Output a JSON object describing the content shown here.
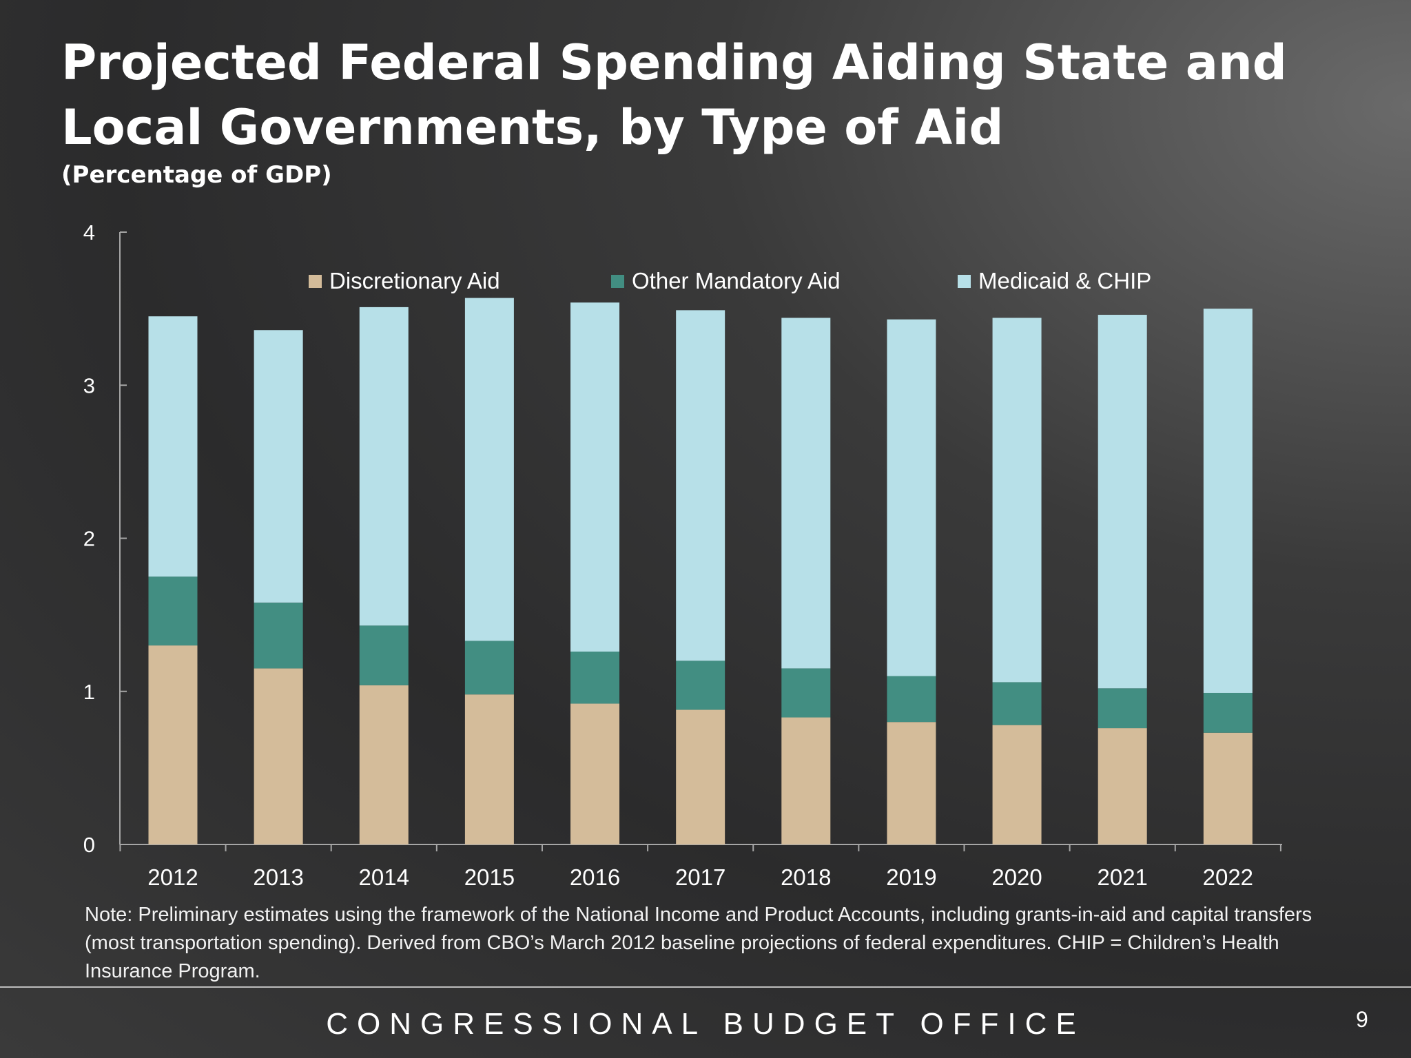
{
  "colors": {
    "discretionary": "#d4bc9a",
    "other_mandatory": "#428e82",
    "medicaid": "#b7e0e8"
  },
  "chart_data": {
    "type": "bar",
    "stacked": true,
    "title": "Projected Federal Spending Aiding State and Local Governments, by Type of Aid",
    "subtitle": "(Percentage of GDP)",
    "xlabel": "",
    "ylabel": "",
    "ylim": [
      0,
      4
    ],
    "yticks": [
      "0",
      "1",
      "2",
      "3",
      "4"
    ],
    "grid": false,
    "legend_placement": "top",
    "categories": [
      "2012",
      "2013",
      "2014",
      "2015",
      "2016",
      "2017",
      "2018",
      "2019",
      "2020",
      "2021",
      "2022"
    ],
    "series": [
      {
        "name": "Discretionary Aid",
        "color": "#d4bc9a",
        "values": [
          1.3,
          1.15,
          1.04,
          0.98,
          0.92,
          0.88,
          0.83,
          0.8,
          0.78,
          0.76,
          0.73
        ]
      },
      {
        "name": "Other Mandatory Aid",
        "color": "#428e82",
        "values": [
          0.45,
          0.43,
          0.39,
          0.35,
          0.34,
          0.32,
          0.32,
          0.3,
          0.28,
          0.26,
          0.26
        ]
      },
      {
        "name": "Medicaid & CHIP",
        "color": "#b7e0e8",
        "values": [
          1.7,
          1.78,
          2.08,
          2.24,
          2.28,
          2.29,
          2.29,
          2.33,
          2.38,
          2.44,
          2.51
        ]
      }
    ]
  },
  "note": "Note: Preliminary estimates using the framework of the National Income and Product Accounts, including grants-in-aid and capital transfers  (most transportation spending). Derived from CBO’s March 2012 baseline projections of federal expenditures. CHIP = Children’s Health Insurance Program.",
  "footer": "CONGRESSIONAL BUDGET OFFICE",
  "page_number": "9"
}
